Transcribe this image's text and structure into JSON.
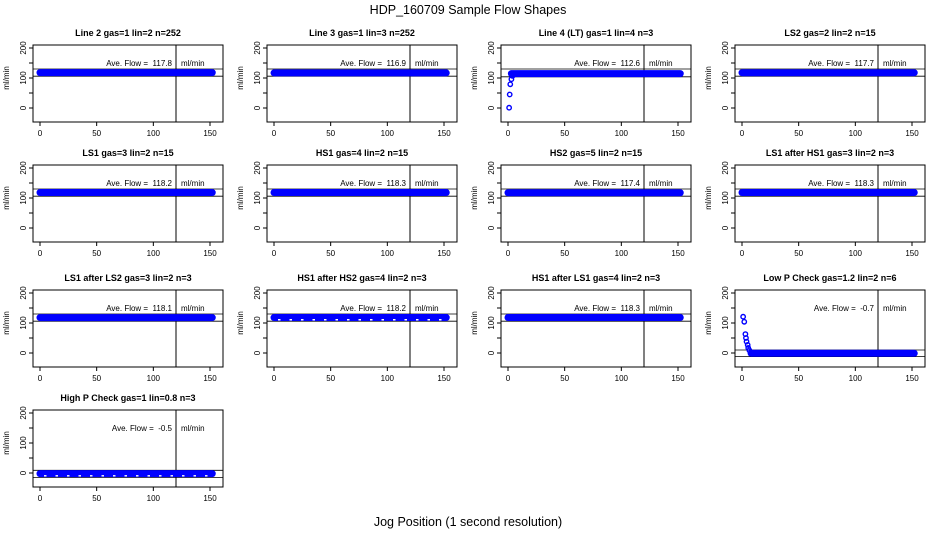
{
  "chart_data": {
    "type": "scatter",
    "title": "HDP_160709  Sample Flow Shapes",
    "xlabel": "Jog Position (1 second resolution)",
    "ylabel": "ml/min",
    "x_ticks": [
      0,
      50,
      100,
      150
    ],
    "y_tick_values": [
      0,
      50,
      100,
      150,
      200
    ],
    "y_tick_labels": [
      0,
      100,
      200
    ],
    "xlim": [
      -6,
      161
    ],
    "ylim": [
      -46,
      210
    ],
    "marker_line_x": 120,
    "point_color": "#0000ff",
    "line_color": "#000000",
    "ave_flow_prefix": "Ave. Flow =",
    "panels": [
      {
        "title": "Line 2 gas=1 lin=2 n=252",
        "ave_flow": "117.8",
        "unit": "ml/min",
        "band_x": [
          0,
          152
        ],
        "band_level": 117.8,
        "ref_lines": [
          130,
          106
        ],
        "lead_points": [],
        "speckled": false
      },
      {
        "title": "Line 3 gas=1 lin=3 n=252",
        "ave_flow": "116.9",
        "unit": "ml/min",
        "band_x": [
          0,
          152
        ],
        "band_level": 116.9,
        "ref_lines": [
          130,
          106
        ],
        "lead_points": [],
        "speckled": false
      },
      {
        "title": "Line 4 (LT) gas=1 lin=4 n=3",
        "ave_flow": "112.6",
        "unit": "ml/min",
        "band_x": [
          3,
          152
        ],
        "band_level": 114.5,
        "ref_lines": [
          130,
          104
        ],
        "lead_points": [
          [
            1,
            1
          ],
          [
            1.5,
            45
          ],
          [
            2,
            79
          ],
          [
            3,
            96
          ],
          [
            4,
            107
          ]
        ],
        "speckled": false
      },
      {
        "title": "LS2 gas=2 lin=2 n=15",
        "ave_flow": "117.7",
        "unit": "ml/min",
        "band_x": [
          0,
          152
        ],
        "band_level": 117.7,
        "ref_lines": [
          130,
          106
        ],
        "lead_points": [],
        "speckled": false
      },
      {
        "title": "LS1 gas=3 lin=2 n=15",
        "ave_flow": "118.2",
        "unit": "ml/min",
        "band_x": [
          0,
          152
        ],
        "band_level": 118.2,
        "ref_lines": [
          130,
          106
        ],
        "lead_points": [],
        "speckled": false
      },
      {
        "title": "HS1 gas=4 lin=2 n=15",
        "ave_flow": "118.3",
        "unit": "ml/min",
        "band_x": [
          0,
          152
        ],
        "band_level": 118.3,
        "ref_lines": [
          130,
          106
        ],
        "lead_points": [],
        "speckled": false
      },
      {
        "title": "HS2 gas=5 lin=2 n=15",
        "ave_flow": "117.4",
        "unit": "ml/min",
        "band_x": [
          0,
          152
        ],
        "band_level": 117.4,
        "ref_lines": [
          130,
          106
        ],
        "lead_points": [],
        "speckled": false
      },
      {
        "title": "LS1 after HS1 gas=3 lin=2 n=3",
        "ave_flow": "118.3",
        "unit": "ml/min",
        "band_x": [
          0,
          152
        ],
        "band_level": 118.3,
        "ref_lines": [
          130,
          106
        ],
        "lead_points": [],
        "speckled": false
      },
      {
        "title": "LS1 after LS2 gas=3 lin=2 n=3",
        "ave_flow": "118.1",
        "unit": "ml/min",
        "band_x": [
          0,
          152
        ],
        "band_level": 118.1,
        "ref_lines": [
          130,
          106
        ],
        "lead_points": [],
        "speckled": false
      },
      {
        "title": "HS1 after HS2 gas=4 lin=2 n=3",
        "ave_flow": "118.2",
        "unit": "ml/min",
        "band_x": [
          0,
          152
        ],
        "band_level": 118.2,
        "ref_lines": [
          130,
          106
        ],
        "lead_points": [],
        "speckled": true
      },
      {
        "title": "HS1 after LS1 gas=4 lin=2 n=3",
        "ave_flow": "118.3",
        "unit": "ml/min",
        "band_x": [
          0,
          152
        ],
        "band_level": 118.3,
        "ref_lines": [
          130,
          106
        ],
        "lead_points": [],
        "speckled": false
      },
      {
        "title": "Low P Check gas=1.2 lin=2 n=6",
        "ave_flow": "-0.7",
        "unit": "ml/min",
        "band_x": [
          8,
          152
        ],
        "band_level": -1,
        "ref_lines": [
          10,
          -12
        ],
        "lead_points": [
          [
            1,
            121
          ],
          [
            2,
            104
          ],
          [
            3,
            63
          ],
          [
            3.5,
            50
          ],
          [
            4,
            38
          ],
          [
            5,
            27
          ],
          [
            5.5,
            17
          ],
          [
            6.5,
            9
          ]
        ],
        "speckled": false
      },
      {
        "title": "High P Check gas=1 lin=0.8 n=3",
        "ave_flow": "-0.5",
        "unit": "ml/min",
        "band_x": [
          0,
          152
        ],
        "band_level": -2,
        "ref_lines": [
          9,
          -15
        ],
        "lead_points": [],
        "speckled": true
      }
    ]
  }
}
